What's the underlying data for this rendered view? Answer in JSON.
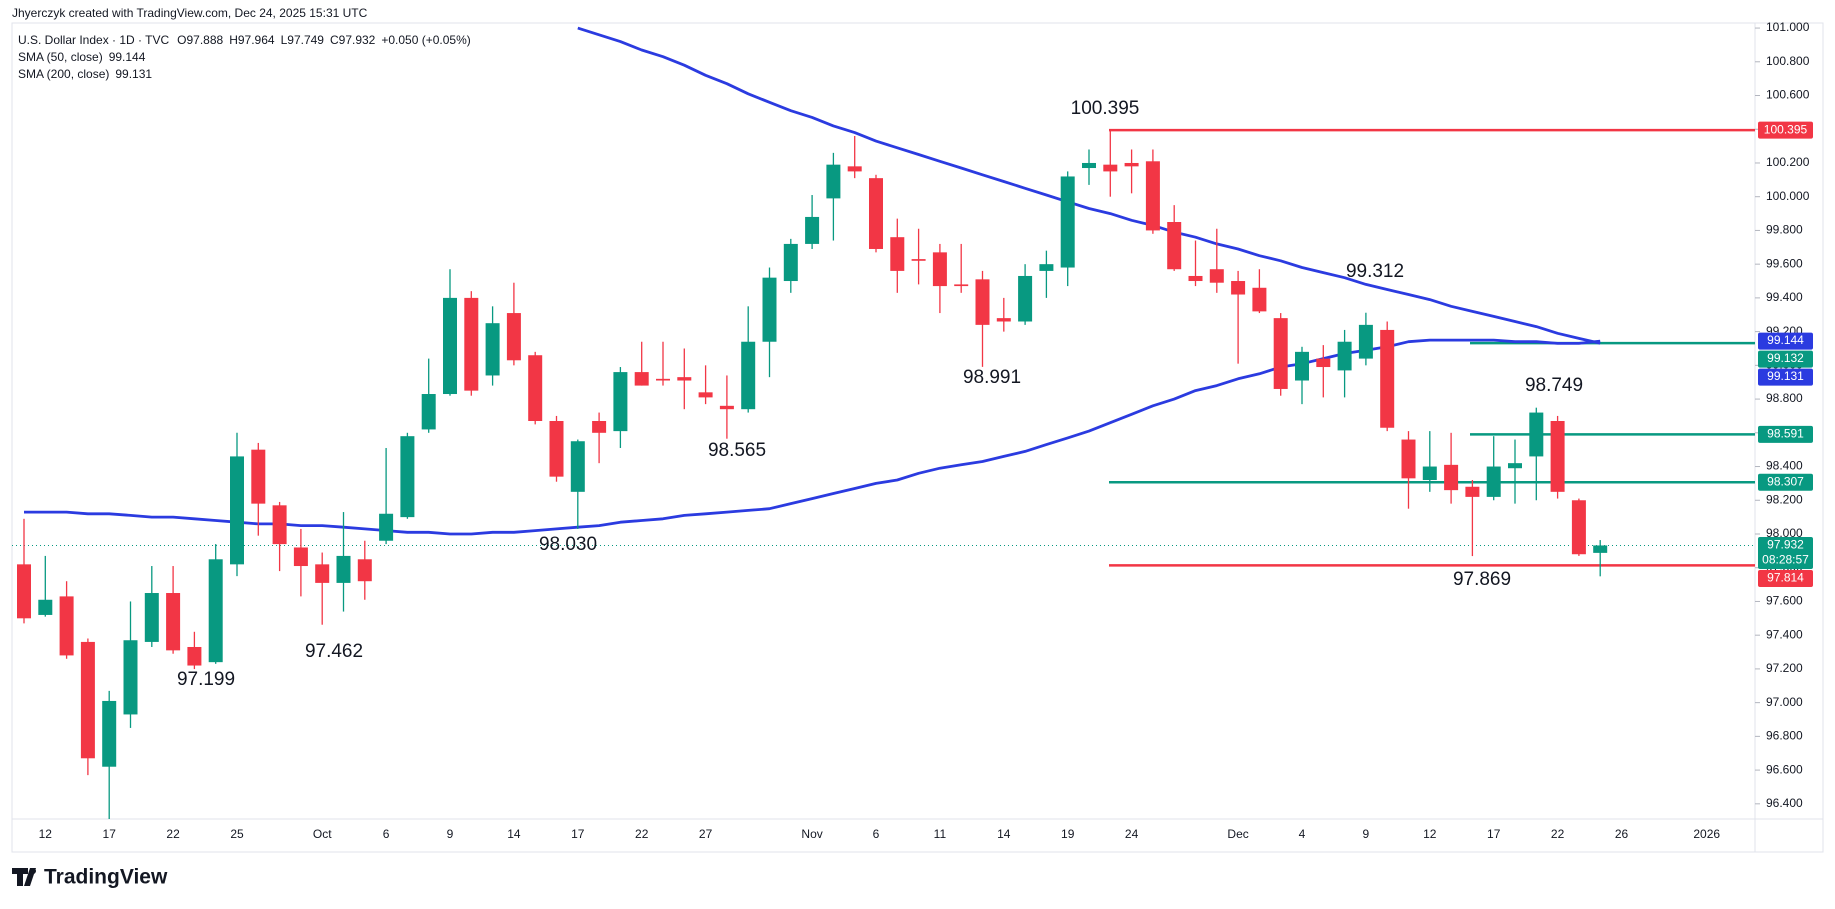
{
  "attribution": "Jhyerczyk created with TradingView.com, Dec 24, 2025 15:31 UTC",
  "brand": "TradingView",
  "header": {
    "symbol": "U.S. Dollar Index · 1D · TVC",
    "ohlc_labels": [
      "O",
      "H",
      "L",
      "C"
    ],
    "change": "+0.050 (+0.05%)"
  },
  "chart_data": {
    "type": "candlestick",
    "up_color": "#089981",
    "down_color": "#f23645",
    "categories": [
      null,
      "12",
      null,
      null,
      "17",
      null,
      null,
      "22",
      null,
      null,
      "25",
      null,
      null,
      null,
      "Oct",
      null,
      null,
      "6",
      null,
      null,
      "9",
      null,
      null,
      "14",
      null,
      null,
      "17",
      null,
      null,
      "22",
      null,
      null,
      "27",
      null,
      null,
      null,
      null,
      "Nov",
      null,
      null,
      "6",
      null,
      null,
      "11",
      null,
      null,
      "14",
      null,
      null,
      "19",
      null,
      null,
      "24",
      null,
      null,
      null,
      null,
      "Dec",
      null,
      null,
      "4",
      null,
      null,
      "9",
      null,
      null,
      "12",
      null,
      null,
      "17",
      null,
      null,
      "22",
      null,
      null,
      "26",
      null,
      null,
      null,
      "2026"
    ],
    "open": [
      97.82,
      97.52,
      97.63,
      97.36,
      96.62,
      96.93,
      97.36,
      97.65,
      97.33,
      97.24,
      97.82,
      98.5,
      98.17,
      97.92,
      97.82,
      97.71,
      97.85,
      97.96,
      98.1,
      98.62,
      98.83,
      99.4,
      98.94,
      99.31,
      99.06,
      98.67,
      98.25,
      98.67,
      98.61,
      98.96,
      98.92,
      98.93,
      98.84,
      98.76,
      98.74,
      99.14,
      99.5,
      99.72,
      99.99,
      100.18,
      100.11,
      99.76,
      99.63,
      99.67,
      99.48,
      99.51,
      99.28,
      99.26,
      99.56,
      99.58,
      100.17,
      100.19,
      100.2,
      100.21,
      99.85,
      99.53,
      99.57,
      99.5,
      99.46,
      99.28,
      98.91,
      99.04,
      98.97,
      99.04,
      99.21,
      98.56,
      98.32,
      98.41,
      98.28,
      98.22,
      98.39,
      98.46,
      98.67,
      98.2,
      97.888,
      null,
      null,
      null,
      null,
      null
    ],
    "high": [
      98.09,
      97.87,
      97.72,
      97.38,
      97.07,
      97.6,
      97.81,
      97.81,
      97.42,
      97.94,
      98.6,
      98.54,
      98.19,
      98.03,
      97.89,
      98.13,
      97.96,
      98.51,
      98.6,
      99.04,
      99.57,
      99.44,
      99.35,
      99.49,
      99.08,
      98.7,
      98.56,
      98.72,
      98.99,
      99.14,
      99.14,
      99.1,
      99.0,
      98.94,
      99.35,
      99.58,
      99.75,
      100.01,
      100.26,
      100.36,
      100.13,
      99.87,
      99.81,
      99.72,
      99.72,
      99.56,
      99.4,
      99.6,
      99.68,
      100.15,
      100.28,
      100.395,
      100.28,
      100.28,
      99.95,
      99.74,
      99.81,
      99.56,
      99.57,
      99.31,
      99.11,
      99.12,
      99.21,
      99.312,
      99.26,
      98.61,
      98.61,
      98.6,
      98.32,
      98.58,
      98.56,
      98.749,
      98.7,
      98.21,
      97.964,
      null,
      null,
      null,
      null,
      null
    ],
    "low": [
      97.47,
      97.51,
      97.26,
      96.57,
      96.31,
      96.85,
      97.33,
      97.29,
      97.199,
      97.23,
      97.75,
      97.99,
      97.78,
      97.63,
      97.462,
      97.54,
      97.61,
      97.94,
      98.09,
      98.6,
      98.82,
      98.82,
      98.88,
      99.0,
      98.65,
      98.31,
      98.03,
      98.42,
      98.51,
      98.88,
      98.88,
      98.74,
      98.77,
      98.565,
      98.72,
      98.93,
      99.43,
      99.69,
      99.74,
      100.11,
      99.67,
      99.43,
      99.48,
      99.31,
      99.43,
      98.991,
      99.2,
      99.24,
      99.4,
      99.47,
      100.07,
      100.0,
      100.02,
      99.78,
      99.56,
      99.47,
      99.43,
      99.01,
      99.31,
      98.82,
      98.77,
      98.81,
      98.81,
      99.0,
      98.61,
      98.15,
      98.25,
      98.18,
      97.869,
      98.2,
      98.18,
      98.2,
      98.21,
      97.87,
      97.749,
      null,
      null,
      null,
      null,
      null
    ],
    "close": [
      97.5,
      97.61,
      97.28,
      96.67,
      97.01,
      97.37,
      97.65,
      97.31,
      97.22,
      97.85,
      98.46,
      98.18,
      97.94,
      97.81,
      97.71,
      97.87,
      97.72,
      98.12,
      98.58,
      98.83,
      99.4,
      98.85,
      99.25,
      99.03,
      98.67,
      98.34,
      98.55,
      98.6,
      98.96,
      98.88,
      98.91,
      98.91,
      98.81,
      98.74,
      99.14,
      99.52,
      99.72,
      99.88,
      100.19,
      100.15,
      99.69,
      99.56,
      99.62,
      99.47,
      99.47,
      99.24,
      99.26,
      99.53,
      99.6,
      100.12,
      100.2,
      100.15,
      100.18,
      99.8,
      99.57,
      99.5,
      99.49,
      99.42,
      99.32,
      98.86,
      99.08,
      98.99,
      99.14,
      99.24,
      98.63,
      98.33,
      98.4,
      98.26,
      98.22,
      98.4,
      98.42,
      98.72,
      98.25,
      97.88,
      97.932,
      null,
      null,
      null,
      null,
      null
    ],
    "series": [
      {
        "name": "SMA (50, close)",
        "color": "#2b3be0",
        "values": [
          98.13,
          98.13,
          98.13,
          98.12,
          98.12,
          98.11,
          98.1,
          98.1,
          98.09,
          98.08,
          98.07,
          98.06,
          98.06,
          98.05,
          98.05,
          98.04,
          98.03,
          98.02,
          98.01,
          98.01,
          98.0,
          98.0,
          98.01,
          98.01,
          98.02,
          98.03,
          98.04,
          98.05,
          98.07,
          98.08,
          98.09,
          98.11,
          98.12,
          98.13,
          98.14,
          98.15,
          98.18,
          98.21,
          98.24,
          98.27,
          98.3,
          98.32,
          98.36,
          98.39,
          98.41,
          98.43,
          98.46,
          98.49,
          98.53,
          98.57,
          98.61,
          98.66,
          98.71,
          98.76,
          98.8,
          98.85,
          98.88,
          98.92,
          98.95,
          98.99,
          99.01,
          99.04,
          99.07,
          99.09,
          99.11,
          99.14,
          99.15,
          99.15,
          99.15,
          99.15,
          99.14,
          99.14,
          99.13,
          99.13,
          99.144,
          null,
          null,
          null,
          null,
          null
        ]
      },
      {
        "name": "SMA (200, close)",
        "color": "#2b3be0",
        "values": [
          null,
          null,
          null,
          null,
          null,
          null,
          null,
          null,
          null,
          null,
          null,
          null,
          null,
          null,
          null,
          null,
          null,
          null,
          null,
          null,
          null,
          null,
          null,
          null,
          null,
          null,
          101.0,
          100.96,
          100.92,
          100.87,
          100.83,
          100.78,
          100.72,
          100.67,
          100.61,
          100.56,
          100.51,
          100.47,
          100.42,
          100.38,
          100.33,
          100.29,
          100.25,
          100.21,
          100.17,
          100.13,
          100.09,
          100.05,
          100.01,
          99.97,
          99.93,
          99.9,
          99.86,
          99.83,
          99.79,
          99.76,
          99.72,
          99.69,
          99.65,
          99.62,
          99.58,
          99.55,
          99.52,
          99.48,
          99.45,
          99.42,
          99.39,
          99.35,
          99.32,
          99.29,
          99.26,
          99.23,
          99.19,
          99.16,
          99.131,
          null,
          null,
          null,
          null,
          null
        ]
      }
    ],
    "levels": [
      {
        "value": 100.395,
        "color": "#f23645"
      },
      {
        "value": 99.132,
        "color": "#089981"
      },
      {
        "value": 98.591,
        "color": "#089981"
      },
      {
        "value": 98.307,
        "color": "#089981"
      },
      {
        "value": 97.814,
        "color": "#f23645"
      }
    ],
    "annotations": [
      "100.395",
      "99.312",
      "98.749",
      "98.991",
      "98.565",
      "98.030",
      "97.462",
      "97.199",
      "97.869"
    ],
    "countdown": "08:28:57",
    "ylim": [
      96.31,
      101.03
    ],
    "yticks": [
      {
        "value": 96.4,
        "label": "96.400"
      },
      {
        "value": 96.6,
        "label": "96.600"
      },
      {
        "value": 96.8,
        "label": "96.800"
      },
      {
        "value": 97.0,
        "label": "97.000"
      },
      {
        "value": 97.2,
        "label": "97.200"
      },
      {
        "value": 97.4,
        "label": "97.400"
      },
      {
        "value": 97.6,
        "label": "97.600"
      },
      {
        "value": 97.8,
        "label": "97.800"
      },
      {
        "value": 98.0,
        "label": "98.000"
      },
      {
        "value": 98.2,
        "label": "98.200"
      },
      {
        "value": 98.4,
        "label": "98.400"
      },
      {
        "value": 98.6,
        "label": "98.600"
      },
      {
        "value": 98.8,
        "label": "98.800"
      },
      {
        "value": 99.0,
        "label": "99.000"
      },
      {
        "value": 99.2,
        "label": "99.200"
      },
      {
        "value": 99.4,
        "label": "99.400"
      },
      {
        "value": 99.6,
        "label": "99.600"
      },
      {
        "value": 99.8,
        "label": "99.800"
      },
      {
        "value": 100.0,
        "label": "100.000"
      },
      {
        "value": 100.2,
        "label": "100.200"
      },
      {
        "value": 100.4,
        "label": "100.400"
      },
      {
        "value": 100.6,
        "label": "100.600"
      },
      {
        "value": 100.8,
        "label": "100.800"
      },
      {
        "value": 101.0,
        "label": "101.000"
      }
    ],
    "grid": false
  }
}
